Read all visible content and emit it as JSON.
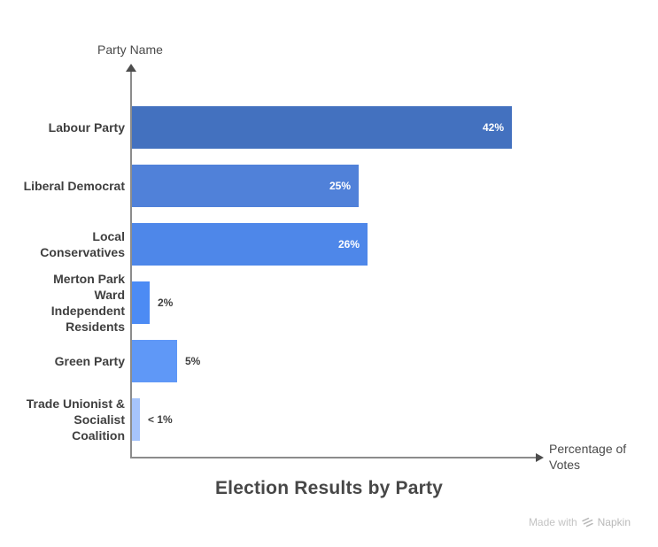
{
  "chart_data": {
    "type": "bar",
    "orientation": "horizontal",
    "title": "Election Results by Party",
    "xlabel": "Percentage of Votes",
    "ylabel": "Party Name",
    "xlim": [
      0,
      45
    ],
    "grid": false,
    "legend": "none",
    "categories": [
      "Labour Party",
      "Liberal Democrat",
      "Local Conservatives",
      "Merton Park Ward Independent Residents",
      "Green Party",
      "Trade Unionist & Socialist Coalition"
    ],
    "label_lines": [
      "Labour Party",
      "Liberal Democrat",
      "Local\nConservatives",
      "Merton Park\nWard\nIndependent\nResidents",
      "Green Party",
      "Trade Unionist &\nSocialist\nCoalition"
    ],
    "values": [
      42,
      25,
      26,
      2,
      5,
      0.9
    ],
    "value_labels": [
      "42%",
      "25%",
      "26%",
      "2%",
      "5%",
      "< 1%"
    ],
    "label_inside": [
      true,
      true,
      true,
      false,
      false,
      false
    ],
    "bar_colors": [
      "#4371BF",
      "#5081D9",
      "#4E87E9",
      "#4C8BF4",
      "#5F98F7",
      "#A6C4FB"
    ]
  },
  "axes": {
    "y_title": "Party Name",
    "x_title": "Percentage of Votes",
    "axis_color": "#8c8c8c"
  },
  "watermark": {
    "prefix": "Made with",
    "brand": "Napkin",
    "icon": "napkin-logo-icon",
    "color": "#c3c3c3"
  }
}
